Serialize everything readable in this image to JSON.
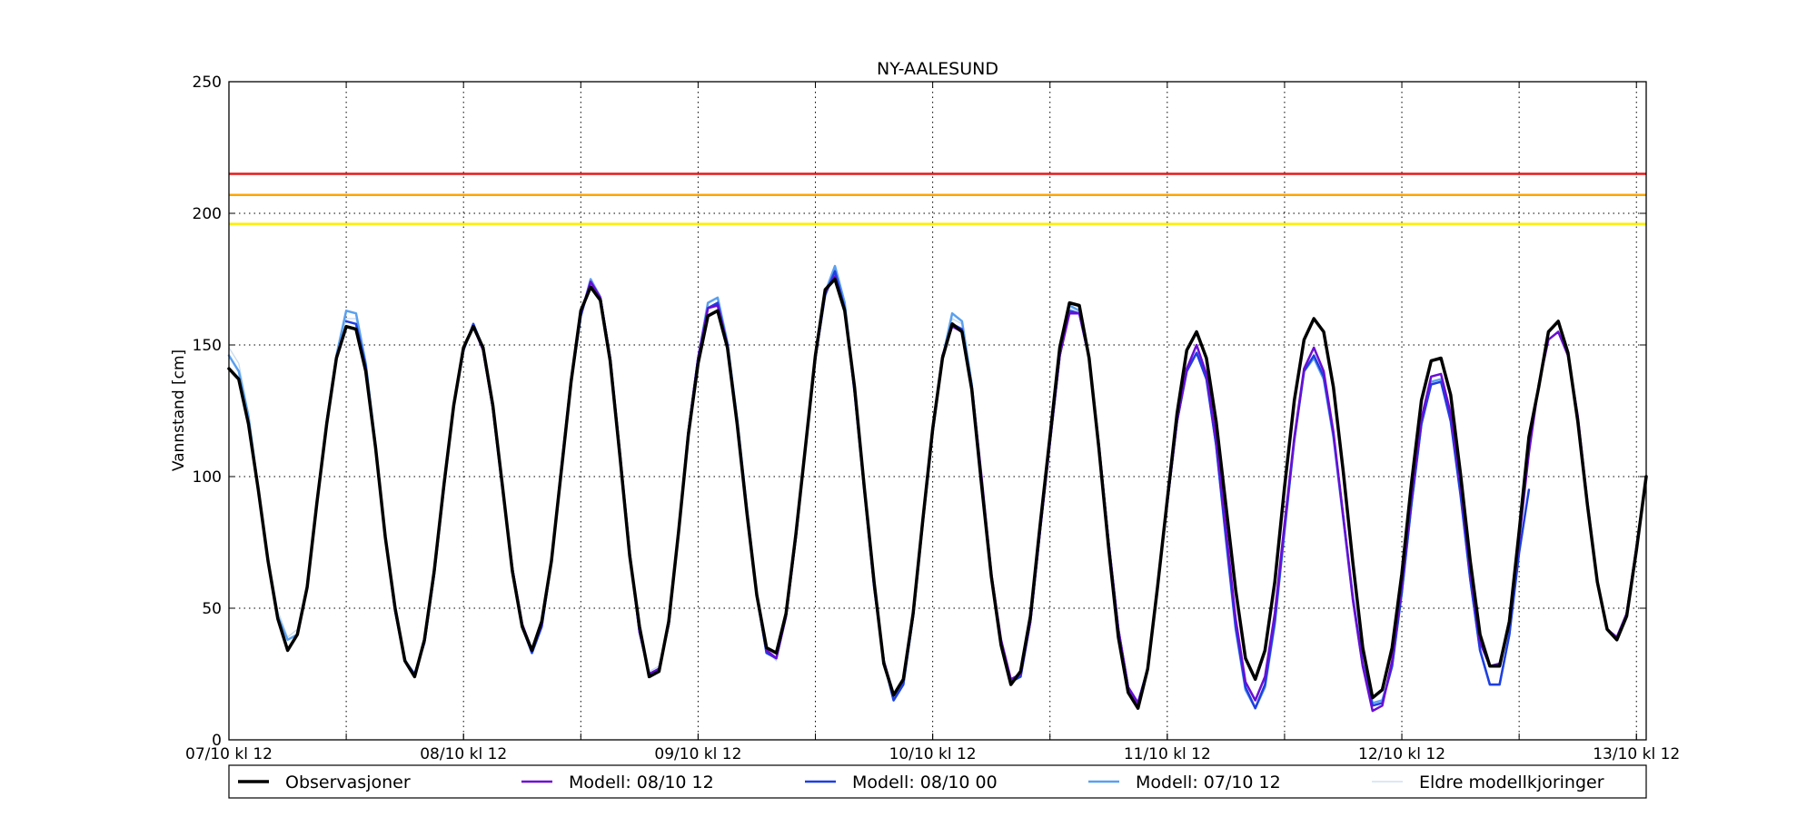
{
  "chart_data": {
    "type": "line",
    "title": "NY-AALESUND",
    "xlabel": "",
    "ylabel": "Vannstand [cm]",
    "ylim": [
      0,
      250
    ],
    "yticks": [
      0,
      50,
      100,
      150,
      200,
      250
    ],
    "xlim_hours": [
      0,
      145
    ],
    "x_tick_labels": [
      "07/10 kl 12",
      "08/10 kl 12",
      "09/10 kl 12",
      "10/10 kl 12",
      "11/10 kl 12",
      "12/10 kl 12",
      "13/10 kl 12"
    ],
    "x_step_hours": 1,
    "grid": true,
    "legend_position": "bottom",
    "thresholds": [
      {
        "value": 215,
        "color": "#e41a1c"
      },
      {
        "value": 207,
        "color": "#ffa500"
      },
      {
        "value": 196,
        "color": "#ffee00"
      }
    ],
    "series": [
      {
        "name": "Eldre modellkjoringer",
        "color": "#c6dbef",
        "width": 1.3,
        "start_hour": 0,
        "values": [
          149,
          143,
          124,
          97,
          70,
          49,
          39,
          42,
          60,
          91,
          122,
          146,
          160,
          160,
          142,
          112,
          78,
          50,
          31,
          25,
          38,
          64,
          97,
          127,
          148,
          157,
          148,
          125,
          95,
          65,
          44,
          34,
          44,
          68,
          103,
          137,
          162,
          175,
          169,
          145,
          110,
          72,
          42,
          26,
          28,
          45,
          80,
          117,
          145,
          164,
          166,
          150,
          122,
          88,
          56,
          34,
          30,
          46,
          77,
          112,
          145,
          168,
          178,
          165,
          133,
          96,
          60,
          31,
          16,
          22,
          48,
          84,
          118,
          145,
          160,
          158,
          136,
          100,
          63,
          38,
          23,
          25,
          45,
          80,
          113,
          145,
          164,
          162,
          144,
          111,
          74,
          42,
          20,
          14,
          27,
          58
        ]
      },
      {
        "name": "Modell: 07/10 12",
        "color": "#5aa0ee",
        "width": 2.5,
        "start_hour": 0,
        "values": [
          146,
          140,
          123,
          95,
          68,
          47,
          38,
          40,
          58,
          90,
          121,
          146,
          163,
          162,
          143,
          112,
          77,
          49,
          30,
          25,
          37,
          63,
          97,
          127,
          148,
          158,
          149,
          126,
          96,
          65,
          43,
          33,
          43,
          68,
          102,
          136,
          161,
          175,
          168,
          145,
          109,
          71,
          41,
          25,
          27,
          44,
          79,
          117,
          145,
          166,
          168,
          151,
          122,
          88,
          55,
          33,
          31,
          47,
          77,
          112,
          145,
          170,
          180,
          166,
          133,
          96,
          59,
          30,
          15,
          21,
          47,
          83,
          117,
          145,
          162,
          159,
          135,
          99,
          62,
          37,
          22,
          24,
          45,
          80,
          113,
          146,
          165,
          163,
          145,
          112,
          75,
          42,
          20,
          14,
          27,
          58,
          90,
          121,
          140,
          147,
          138,
          112,
          76,
          42,
          19,
          12,
          20,
          44,
          79,
          114,
          140,
          145,
          137,
          115,
          84,
          53,
          28,
          14,
          15,
          28,
          56,
          90,
          120,
          136,
          137,
          122,
          94,
          61,
          34,
          21,
          21,
          40,
          74
        ]
      },
      {
        "name": "Modell: 08/10 00",
        "color": "#1f3fe0",
        "width": 2.5,
        "start_hour": 12,
        "values": [
          159,
          158,
          142,
          111,
          77,
          49,
          30,
          25,
          37,
          63,
          96,
          127,
          148,
          158,
          149,
          126,
          95,
          65,
          43,
          33,
          43,
          68,
          102,
          136,
          161,
          174,
          168,
          145,
          109,
          71,
          41,
          25,
          27,
          44,
          79,
          117,
          145,
          164,
          166,
          150,
          121,
          87,
          55,
          33,
          31,
          47,
          77,
          112,
          145,
          169,
          178,
          164,
          132,
          95,
          58,
          30,
          15,
          21,
          47,
          83,
          117,
          145,
          158,
          156,
          134,
          98,
          62,
          37,
          22,
          24,
          45,
          80,
          113,
          146,
          163,
          162,
          145,
          112,
          75,
          42,
          20,
          14,
          27,
          58,
          90,
          121,
          140,
          147,
          137,
          112,
          77,
          43,
          20,
          12,
          21,
          45,
          80,
          114,
          140,
          146,
          138,
          116,
          85,
          54,
          29,
          13,
          14,
          28,
          56,
          90,
          120,
          135,
          136,
          121,
          93,
          61,
          34,
          21,
          21,
          40,
          71,
          95
        ]
      },
      {
        "name": "Modell: 08/10 12",
        "color": "#6a0dd4",
        "width": 2.5,
        "start_hour": 24,
        "values": [
          149,
          157,
          148,
          126,
          96,
          65,
          44,
          34,
          44,
          68,
          103,
          137,
          162,
          174,
          168,
          145,
          109,
          71,
          41,
          25,
          27,
          44,
          79,
          117,
          145,
          164,
          165,
          150,
          121,
          87,
          55,
          34,
          31,
          47,
          77,
          112,
          145,
          170,
          176,
          163,
          133,
          96,
          59,
          30,
          17,
          23,
          48,
          84,
          118,
          146,
          157,
          155,
          134,
          100,
          63,
          38,
          23,
          25,
          45,
          80,
          113,
          146,
          162,
          162,
          145,
          112,
          75,
          42,
          20,
          14,
          27,
          58,
          90,
          121,
          141,
          150,
          139,
          114,
          80,
          46,
          22,
          15,
          24,
          48,
          82,
          115,
          141,
          149,
          140,
          117,
          85,
          53,
          28,
          11,
          13,
          30,
          59,
          93,
          122,
          138,
          139,
          124,
          97,
          64,
          37,
          28,
          29,
          45,
          76,
          109,
          135,
          152,
          155,
          146,
          123,
          90,
          60,
          42,
          39,
          48,
          73,
          100
        ]
      },
      {
        "name": "Observasjoner",
        "color": "#000000",
        "width": 3.5,
        "start_hour": 0,
        "values": [
          141,
          137,
          120,
          95,
          68,
          46,
          34,
          40,
          58,
          90,
          120,
          145,
          157,
          156,
          140,
          111,
          77,
          50,
          30,
          24,
          38,
          64,
          97,
          127,
          149,
          157,
          149,
          127,
          96,
          64,
          43,
          34,
          45,
          68,
          102,
          136,
          163,
          172,
          167,
          144,
          108,
          70,
          43,
          24,
          26,
          45,
          79,
          116,
          143,
          161,
          163,
          149,
          120,
          86,
          55,
          35,
          33,
          48,
          78,
          112,
          146,
          171,
          175,
          163,
          134,
          96,
          60,
          29,
          17,
          23,
          48,
          84,
          118,
          145,
          158,
          155,
          133,
          97,
          62,
          36,
          21,
          26,
          47,
          82,
          115,
          149,
          166,
          165,
          145,
          111,
          73,
          39,
          18,
          12,
          27,
          58,
          91,
          124,
          148,
          155,
          145,
          121,
          89,
          57,
          31,
          23,
          34,
          60,
          96,
          129,
          152,
          160,
          155,
          134,
          102,
          67,
          35,
          16,
          19,
          35,
          63,
          98,
          129,
          144,
          145,
          131,
          101,
          68,
          40,
          28,
          28,
          45,
          79,
          115,
          134,
          155,
          159,
          147,
          121,
          89,
          60,
          42,
          38,
          47,
          72,
          100
        ]
      }
    ],
    "legend": [
      {
        "label": "Observasjoner",
        "color": "#000000",
        "width": 3.5
      },
      {
        "label": "Modell: 08/10 12",
        "color": "#6a0dd4",
        "width": 2.5
      },
      {
        "label": "Modell: 08/10 00",
        "color": "#1f3fe0",
        "width": 2.5
      },
      {
        "label": "Modell: 07/10 12",
        "color": "#5aa0ee",
        "width": 2.5
      },
      {
        "label": "Eldre modellkjoringer",
        "color": "#c6dbef",
        "width": 1.3
      }
    ]
  }
}
